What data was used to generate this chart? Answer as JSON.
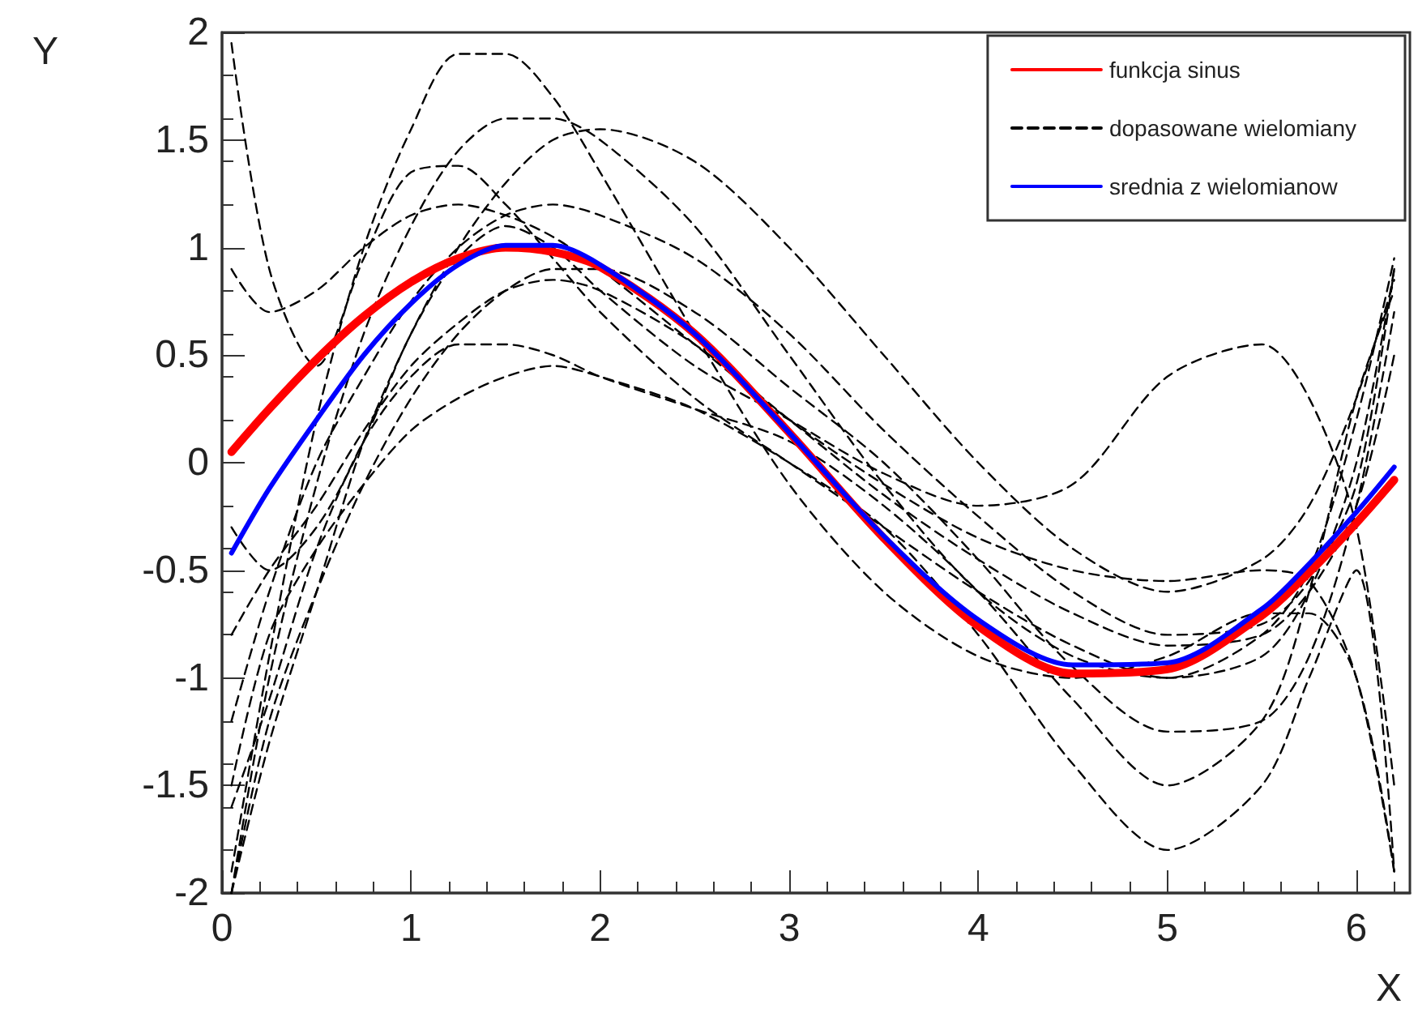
{
  "chart_data": {
    "type": "line",
    "xlabel": "X",
    "ylabel": "Y",
    "xlim": [
      0,
      6.283
    ],
    "xticks": [
      0,
      1,
      2,
      3,
      4,
      5,
      6
    ],
    "ylim": [
      -2,
      2
    ],
    "yticks": [
      -2,
      -1.5,
      -1,
      -0.5,
      0,
      0.5,
      1,
      1.5,
      2
    ],
    "grid": false,
    "legend": "top right",
    "marker": "none",
    "x": [
      0.05,
      0.25,
      0.5,
      0.75,
      1,
      1.25,
      1.5,
      1.75,
      2,
      2.5,
      3,
      3.5,
      4,
      4.5,
      5,
      5.5,
      5.75,
      6,
      6.2
    ],
    "series": [
      {
        "name": "funkcja sinus",
        "color": "#ff0000",
        "line_style": "solid",
        "values": [
          0.05,
          0.25,
          0.48,
          0.68,
          0.84,
          0.95,
          1.0,
          0.98,
          0.91,
          0.6,
          0.14,
          -0.35,
          -0.76,
          -0.98,
          -0.96,
          -0.71,
          -0.51,
          -0.28,
          -0.08
        ]
      },
      {
        "name": "dopasowane wielomiany",
        "color": "#000000",
        "line_style": "dashed",
        "values": [
          -1.9,
          -0.9,
          0.2,
          1.0,
          1.55,
          1.9,
          1.9,
          1.7,
          1.35,
          0.6,
          -0.1,
          -0.6,
          -0.9,
          -1.0,
          -0.9,
          -0.7,
          -0.7,
          -1.0,
          -1.9
        ]
      },
      {
        "color": "#000000",
        "line_style": "dashed",
        "values": [
          1.95,
          0.9,
          0.45,
          0.95,
          1.35,
          1.38,
          1.2,
          0.95,
          0.7,
          0.3,
          0.0,
          -0.3,
          -0.6,
          -0.85,
          -1.0,
          -0.9,
          -0.6,
          0.0,
          0.9
        ]
      },
      {
        "color": "#000000",
        "line_style": "dashed",
        "values": [
          -2.0,
          -1.0,
          -0.1,
          0.6,
          1.1,
          1.45,
          1.6,
          1.6,
          1.5,
          1.1,
          0.5,
          -0.1,
          -0.6,
          -0.9,
          -1.0,
          -0.8,
          -0.5,
          0.2,
          0.95
        ]
      },
      {
        "color": "#000000",
        "line_style": "dashed",
        "values": [
          -0.8,
          -0.5,
          -0.2,
          0.15,
          0.45,
          0.65,
          0.8,
          0.85,
          0.8,
          0.55,
          0.2,
          -0.15,
          -0.45,
          -0.7,
          -0.85,
          -0.8,
          -0.6,
          -0.2,
          0.5
        ]
      },
      {
        "color": "#000000",
        "line_style": "dashed",
        "values": [
          -1.2,
          -0.6,
          0.0,
          0.4,
          0.75,
          1.0,
          1.15,
          1.2,
          1.15,
          0.95,
          0.6,
          0.15,
          -0.25,
          -0.6,
          -0.8,
          -0.75,
          -0.55,
          -0.1,
          0.9
        ]
      },
      {
        "color": "#000000",
        "line_style": "dashed",
        "values": [
          -1.5,
          -0.8,
          -0.4,
          -0.1,
          0.15,
          0.3,
          0.4,
          0.45,
          0.4,
          0.25,
          0.0,
          -0.3,
          -0.8,
          -1.4,
          -1.8,
          -1.5,
          -1.0,
          -0.5,
          -1.9
        ]
      },
      {
        "color": "#000000",
        "line_style": "dashed",
        "values": [
          0.9,
          0.7,
          0.8,
          1.0,
          1.15,
          1.2,
          1.15,
          1.05,
          0.9,
          0.55,
          0.2,
          -0.1,
          -0.35,
          -0.5,
          -0.55,
          -0.5,
          -0.55,
          -1.0,
          -1.9
        ]
      },
      {
        "color": "#000000",
        "line_style": "dashed",
        "values": [
          -2.0,
          -1.3,
          -0.6,
          0.1,
          0.6,
          1.0,
          1.3,
          1.5,
          1.55,
          1.4,
          1.0,
          0.5,
          0.0,
          -0.4,
          -0.6,
          -0.45,
          -0.2,
          0.3,
          0.85
        ]
      },
      {
        "color": "#000000",
        "line_style": "dashed",
        "values": [
          -1.6,
          -1.1,
          -0.4,
          0.1,
          0.4,
          0.55,
          0.55,
          0.5,
          0.4,
          0.25,
          0.1,
          -0.2,
          -0.6,
          -1.1,
          -1.5,
          -1.2,
          -0.6,
          0.3,
          0.8
        ]
      },
      {
        "color": "#000000",
        "line_style": "dashed",
        "values": [
          -0.3,
          -0.5,
          -0.3,
          0.1,
          0.6,
          0.95,
          1.1,
          1.0,
          0.8,
          0.45,
          0.2,
          -0.05,
          -0.2,
          -0.1,
          0.4,
          0.55,
          0.3,
          -0.3,
          -1.5
        ]
      },
      {
        "color": "#000000",
        "line_style": "dashed",
        "values": [
          -2.0,
          -1.2,
          -0.6,
          -0.1,
          0.3,
          0.6,
          0.8,
          0.9,
          0.9,
          0.7,
          0.35,
          0.0,
          -0.45,
          -0.95,
          -1.25,
          -1.2,
          -0.9,
          -0.2,
          0.7
        ]
      },
      {
        "name": "srednia z wielomianow",
        "color": "#0000ff",
        "line_style": "solid",
        "values": [
          -0.42,
          -0.12,
          0.2,
          0.5,
          0.74,
          0.92,
          1.01,
          1.01,
          0.92,
          0.6,
          0.14,
          -0.34,
          -0.73,
          -0.94,
          -0.93,
          -0.68,
          -0.47,
          -0.23,
          -0.02
        ]
      }
    ]
  }
}
